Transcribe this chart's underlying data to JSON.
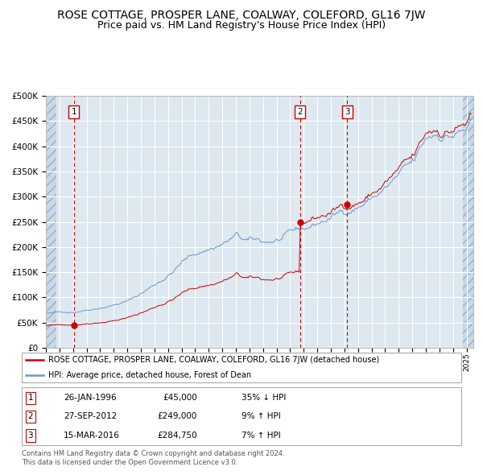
{
  "title": "ROSE COTTAGE, PROSPER LANE, COALWAY, COLEFORD, GL16 7JW",
  "subtitle": "Price paid vs. HM Land Registry's House Price Index (HPI)",
  "red_label": "ROSE COTTAGE, PROSPER LANE, COALWAY, COLEFORD, GL16 7JW (detached house)",
  "blue_label": "HPI: Average price, detached house, Forest of Dean",
  "transactions": [
    {
      "num": 1,
      "date": "26-JAN-1996",
      "price": 45000,
      "pct": "35%",
      "dir": "↓"
    },
    {
      "num": 2,
      "date": "27-SEP-2012",
      "price": 249000,
      "pct": "9%",
      "dir": "↑"
    },
    {
      "num": 3,
      "date": "15-MAR-2016",
      "price": 284750,
      "pct": "7%",
      "dir": "↑"
    }
  ],
  "transaction_years": [
    1996.07,
    2012.74,
    2016.21
  ],
  "transaction_prices": [
    45000,
    249000,
    284750
  ],
  "ylim": [
    0,
    500000
  ],
  "yticks": [
    0,
    50000,
    100000,
    150000,
    200000,
    250000,
    300000,
    350000,
    400000,
    450000,
    500000
  ],
  "xlim_start": 1994.0,
  "xlim_end": 2025.5,
  "red_color": "#cc0000",
  "blue_color": "#6699cc",
  "background_plot": "#dde8f0",
  "background_hatch": "#c8d8e8",
  "grid_color": "#ffffff",
  "title_fontsize": 10,
  "subtitle_fontsize": 9,
  "footer_text": "Contains HM Land Registry data © Crown copyright and database right 2024.\nThis data is licensed under the Open Government Licence v3.0."
}
